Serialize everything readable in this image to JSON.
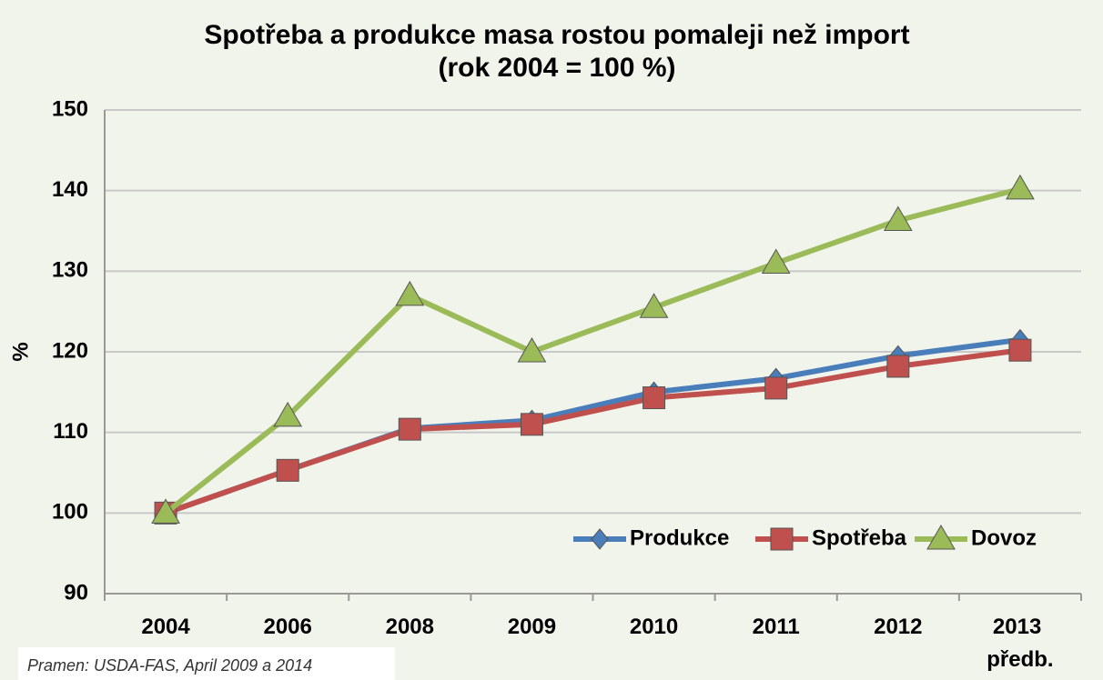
{
  "chart_data": {
    "type": "line",
    "title": "Spotřeba a produkce masa rostou pomaleji než import",
    "subtitle": "(rok 2004 = 100 %)",
    "y_label": "%",
    "source": "Pramen: USDA-FAS, April 2009 a  2014",
    "categories": [
      "2004",
      "2006",
      "2008",
      "2009",
      "2010",
      "2011",
      "2012",
      "2013 předb."
    ],
    "series": [
      {
        "name": "Produkce",
        "color": "#4a7ebb",
        "marker": "diamond",
        "values": [
          100,
          105.3,
          110.5,
          111.5,
          115,
          116.7,
          119.5,
          121.5
        ]
      },
      {
        "name": "Spotřeba",
        "color": "#c0504d",
        "marker": "square",
        "values": [
          100,
          105.3,
          110.4,
          111,
          114.3,
          115.5,
          118.2,
          120.2
        ]
      },
      {
        "name": "Dovoz",
        "color": "#9bbb59",
        "marker": "triangle",
        "values": [
          100,
          112,
          127,
          120,
          125.5,
          131,
          136.3,
          140.2
        ]
      }
    ],
    "ylim": [
      90,
      150
    ],
    "yticks": [
      90,
      100,
      110,
      120,
      130,
      140,
      150
    ],
    "grid": true,
    "legend": "lower right"
  }
}
